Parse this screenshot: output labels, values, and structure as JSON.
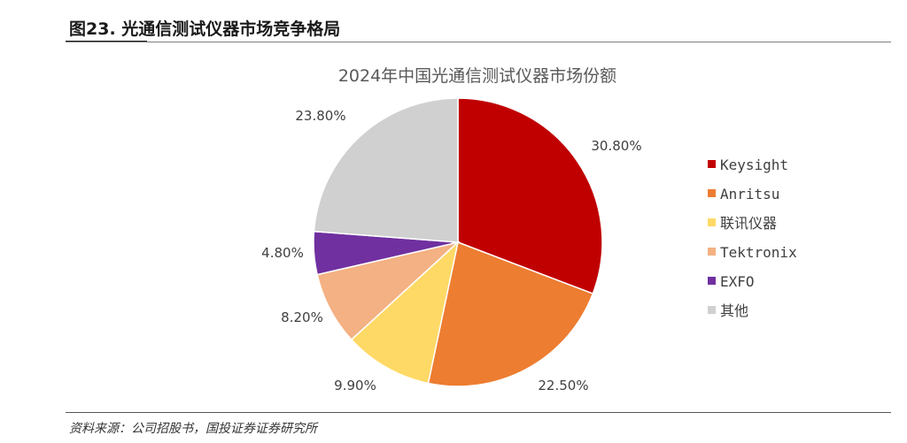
{
  "figure": {
    "title": "图23. 光通信测试仪器市场竞争格局",
    "source": "资料来源：公司招股书，国投证券证券研究所"
  },
  "chart_data": {
    "type": "pie",
    "title": "2024年中国光通信测试仪器市场份额",
    "start_angle_deg": 0,
    "direction": "clockwise",
    "legend_position": "right",
    "slices": [
      {
        "name": "Keysight",
        "value": 30.8,
        "label": "30.80%",
        "color": "#C00000"
      },
      {
        "name": "Anritsu",
        "value": 22.5,
        "label": "22.50%",
        "color": "#ED7D31"
      },
      {
        "name": "联讯仪器",
        "value": 9.9,
        "label": "9.90%",
        "color": "#FFD966"
      },
      {
        "name": "Tektronix",
        "value": 8.2,
        "label": "8.20%",
        "color": "#F4B183"
      },
      {
        "name": "EXFO",
        "value": 4.8,
        "label": "4.80%",
        "color": "#7030A0"
      },
      {
        "name": "其他",
        "value": 23.8,
        "label": "23.80%",
        "color": "#D0D0D0"
      }
    ]
  }
}
